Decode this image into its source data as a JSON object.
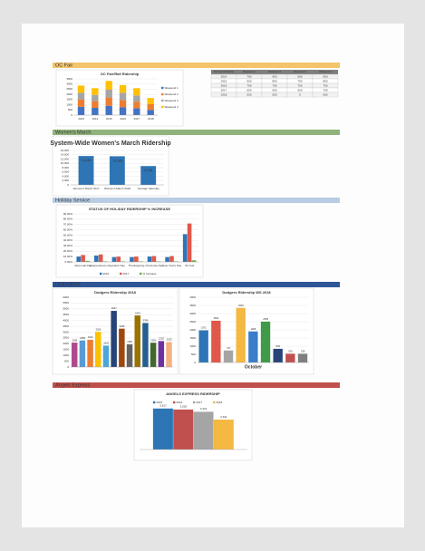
{
  "sections": [
    {
      "heading": "OC Fair",
      "band": "#f4c46a",
      "ink": "#c0392b",
      "chart": {
        "type": "stacked-bar",
        "title": "OC Fair/Rail Ridership",
        "categories": [
          "2013",
          "2014",
          "2015",
          "2016",
          "2017",
          "2018"
        ],
        "series": [
          {
            "name": "Weekend 1",
            "color": "#4472c4",
            "values": [
              800,
              700,
              900,
              750,
              650,
              500
            ]
          },
          {
            "name": "Weekend 2",
            "color": "#ed7d31",
            "values": [
              700,
              650,
              800,
              700,
              650,
              550
            ]
          },
          {
            "name": "Weekend 3",
            "color": "#a5a5a5",
            "values": [
              650,
              600,
              750,
              700,
              600,
              0
            ]
          },
          {
            "name": "Weekend 4",
            "color": "#ffc000",
            "values": [
              700,
              650,
              850,
              750,
              700,
              600
            ]
          }
        ],
        "ylim": [
          0,
          3500
        ],
        "yticks": [
          0,
          500,
          1000,
          1500,
          2000,
          2500,
          3000,
          3500
        ],
        "legend": "right"
      },
      "table": {
        "header": [
          "OC Fair Ridership",
          "Weekend 1",
          "Weekend 2",
          "Weekend 3",
          "Weekend 4"
        ],
        "rows": [
          [
            "2014",
            700,
            650,
            600,
            650
          ],
          [
            "2015",
            900,
            800,
            750,
            850
          ],
          [
            "2016",
            750,
            700,
            700,
            750
          ],
          [
            "2017",
            650,
            650,
            600,
            700
          ],
          [
            "2018",
            500,
            550,
            0,
            600
          ]
        ]
      }
    },
    {
      "heading": "Women's March",
      "band": "#8fb37a",
      "ink": "#333",
      "chart": {
        "type": "bar",
        "title": "System-Wide Women's March Ridership",
        "categories": [
          "Women's March 2017",
          "Women's March 2018",
          "Average Saturday"
        ],
        "series": [
          {
            "color": "#2e75b6",
            "values": [
              13418,
              13305,
              8748
            ],
            "value_labels": [
              "13,418",
              "13,305",
              "8,748"
            ]
          }
        ],
        "ylim": [
          0,
          16000
        ],
        "yticks": [
          0,
          {
            "value": 2000,
            "label": "2,000"
          },
          {
            "value": 4000,
            "label": "4,000"
          },
          {
            "value": 6000,
            "label": "6,000"
          },
          {
            "value": 8000,
            "label": "8,000"
          },
          {
            "value": 10000,
            "label": "10,000"
          },
          {
            "value": 12000,
            "label": "12,000"
          },
          {
            "value": 14000,
            "label": "14,000"
          },
          {
            "value": 16000,
            "label": "16,000"
          }
        ],
        "big_title": true,
        "labels_inside": true
      }
    },
    {
      "heading": "Holiday Service",
      "band": "#b8cce4",
      "ink": "#1f3864",
      "chart": {
        "type": "bar",
        "title": "STATUS OF HOLIDAY RIDERSHIP % INCREASE",
        "categories": [
          "Memorial Day",
          "Independence Day",
          "Labor Day",
          "Thanksgiving",
          "Christmas Day",
          "New Year's Day",
          "OC Fair"
        ],
        "series": [
          {
            "name": "2016",
            "color": "#2e75b6",
            "values": [
              10,
              12,
              9,
              9,
              10,
              9,
              52
            ]
          },
          {
            "name": "2017",
            "color": "#e0584a",
            "values": [
              13,
              14,
              10,
              10,
              11,
              11,
              72
            ]
          },
          {
            "name": "% Increase",
            "color": "#70ad47",
            "values": [
              2,
              1,
              1,
              1,
              1,
              1,
              3
            ]
          }
        ],
        "ylim": [
          0,
          90
        ],
        "yticks": [
          {
            "value": 0,
            "label": "0.00%"
          },
          {
            "value": 10,
            "label": "10.00%"
          },
          {
            "value": 20,
            "label": "20.00%"
          },
          {
            "value": 30,
            "label": "30.00%"
          },
          {
            "value": 40,
            "label": "40.00%"
          },
          {
            "value": 50,
            "label": "50.00%"
          },
          {
            "value": 60,
            "label": "60.00%"
          },
          {
            "value": 70,
            "label": "70.00%"
          },
          {
            "value": 80,
            "label": "80.00%"
          },
          {
            "value": 90,
            "label": "90.00%"
          }
        ],
        "legend": "bottom"
      }
    },
    {
      "heading": "DODGERS",
      "band": "#2f5597",
      "ink": "#ffffff",
      "charts": [
        {
          "type": "bar",
          "title": "Dodgers Ridership 2018",
          "series": [
            {
              "color": "#4472c4",
              "colors": [
                "#b04a8c",
                "#5b9bd5",
                "#ed7d31",
                "#ffc000",
                "#4ea6d8",
                "#264478",
                "#9e480e",
                "#636363",
                "#997300",
                "#255e91",
                "#43682b",
                "#7030a0",
                "#f4b183"
              ],
              "values": [
                2099,
                2285,
                2342,
                3026,
                1843,
                4827,
                3298,
                1950,
                4434,
                3786,
                2090,
                2232,
                2153
              ]
            }
          ],
          "ylim": [
            0,
            6000
          ],
          "yticks": [
            0,
            500,
            1000,
            1500,
            2000,
            2500,
            3000,
            3500,
            4000,
            4500,
            5000,
            5500,
            6000
          ],
          "data_labels": true
        },
        {
          "type": "bar",
          "title": "Dodgers Ridership WS 2018",
          "x_label": "October",
          "series": [
            {
              "color": "#4472c4",
              "colors": [
                "#2e75b6",
                "#e0584a",
                "#a5a5a5",
                "#f4b942",
                "#3a7dc9",
                "#3f9a4a",
                "#264478",
                "#c0504d",
                "#7f7f7f"
              ],
              "values": [
                1971,
                2562,
                737,
                3349,
                1905,
                2505,
                839,
                539,
                538
              ]
            }
          ],
          "ylim": [
            0,
            4000
          ],
          "yticks": [
            0,
            500,
            1000,
            1500,
            2000,
            2500,
            3000,
            3500,
            4000
          ],
          "data_labels": true
        }
      ]
    },
    {
      "heading": "Angels Express",
      "band": "#c0504d",
      "ink": "#ffffff",
      "chart": {
        "type": "bar",
        "title": "ANGELS EXPRESS RIDERSHIP",
        "categories": [
          null
        ],
        "series": [
          {
            "name": "2015",
            "color": "#2e75b6",
            "values": [
              3617
            ],
            "value_labels": [
              "3,617"
            ]
          },
          {
            "name": "2016",
            "color": "#c0504d",
            "values": [
              3529
            ],
            "value_labels": [
              "3,529"
            ]
          },
          {
            "name": "2017",
            "color": "#a5a5a5",
            "values": [
              3331
            ],
            "value_labels": [
              "3,331"
            ]
          },
          {
            "name": "2018",
            "color": "#f4b942",
            "values": [
              2641
            ],
            "value_labels": [
              "2,641"
            ]
          }
        ],
        "ylim": [
          0,
          4000
        ],
        "yticks": [],
        "legend": "top"
      }
    }
  ]
}
